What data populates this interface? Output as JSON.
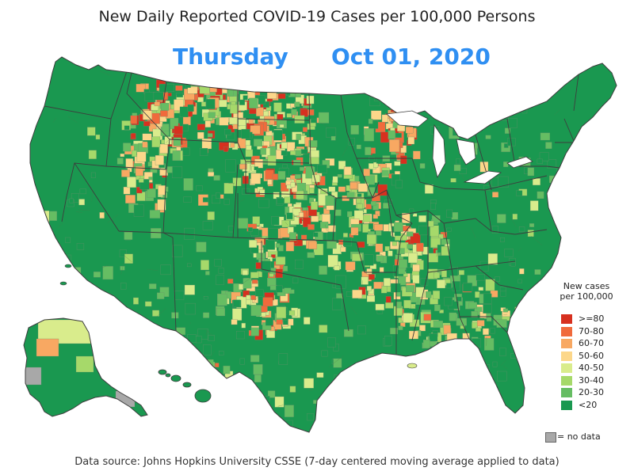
{
  "title": "New Daily Reported COVID-19 Cases per 100,000 Persons",
  "day": "Thursday",
  "date": "Oct  01, 2020",
  "legend": {
    "title_line1": "New cases",
    "title_line2": "per 100,000",
    "items": [
      {
        "label": ">=80",
        "color": "#d7301f"
      },
      {
        "label": "70-80",
        "color": "#f06a3c"
      },
      {
        "label": "60-70",
        "color": "#f8a862"
      },
      {
        "label": "50-60",
        "color": "#fcd78a"
      },
      {
        "label": "40-50",
        "color": "#d9ec8c"
      },
      {
        "label": "30-40",
        "color": "#a6d96a"
      },
      {
        "label": "20-30",
        "color": "#66bd63"
      },
      {
        "label": "<20",
        "color": "#1a9850"
      }
    ],
    "no_data": {
      "label": "= no data",
      "color": "#a8a8a8"
    }
  },
  "source": "Data source: Johns Hopkins University CSSE (7-day centered moving average applied to data)"
}
